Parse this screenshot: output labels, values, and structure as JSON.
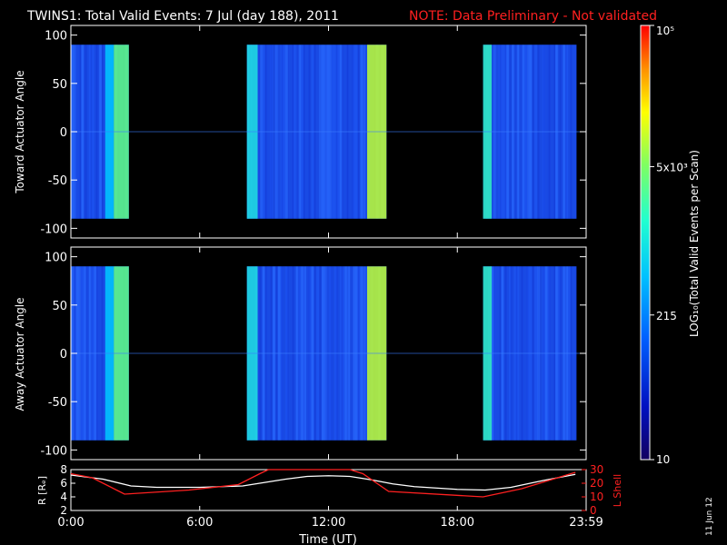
{
  "header": {
    "title": "TWINS1: Total Valid Events:  7 Jul (day 188), 2011",
    "note": "NOTE: Data Preliminary - Not validated"
  },
  "colorbar": {
    "label": "LOG₁₀(Total Valid Events per Scan)",
    "ticks": [
      "10",
      "215",
      "5x10³",
      "10⁵"
    ]
  },
  "side_date": "11 Jun 12",
  "colors": {
    "title": "#ffffff",
    "note": "#ff2020",
    "background": "#000000",
    "lshell": "#ff2020",
    "r": "#ffffff"
  },
  "chart_data": [
    {
      "type": "heatmap",
      "panel": "top",
      "ylabel": "Toward Actuator Angle",
      "ylim": [
        -110,
        110
      ],
      "y_ticks": [
        100,
        50,
        0,
        -50,
        -100
      ],
      "xlim": [
        0,
        24
      ],
      "angle_range": [
        -90,
        90
      ],
      "coverage_hours": [
        [
          0,
          2.7
        ],
        [
          8.2,
          14.7
        ],
        [
          19.2,
          23.55
        ]
      ],
      "bright_stripes_hours": [
        [
          1.6,
          2.0
        ],
        [
          2.0,
          2.7
        ],
        [
          8.2,
          8.7
        ],
        [
          13.8,
          14.7
        ],
        [
          19.2,
          19.6
        ]
      ],
      "scale": "log"
    },
    {
      "type": "heatmap",
      "panel": "middle",
      "ylabel": "Away Actuator Angle",
      "ylim": [
        -110,
        110
      ],
      "y_ticks": [
        100,
        50,
        0,
        -50,
        -100
      ],
      "xlim": [
        0,
        24
      ],
      "angle_range": [
        -90,
        90
      ],
      "coverage_hours": [
        [
          0,
          2.7
        ],
        [
          8.2,
          14.7
        ],
        [
          19.2,
          23.55
        ]
      ],
      "bright_stripes_hours": [
        [
          1.6,
          2.0
        ],
        [
          2.0,
          2.7
        ],
        [
          8.2,
          8.7
        ],
        [
          13.8,
          14.7
        ],
        [
          19.2,
          19.6
        ]
      ],
      "scale": "log"
    },
    {
      "type": "line",
      "panel": "bottom",
      "xlabel": "Time (UT)",
      "x_ticks": [
        "0:00",
        "6:00",
        "12:00",
        "18:00",
        "23:59"
      ],
      "xlim": [
        0,
        24
      ],
      "ylabel_left": "R [Rₑ]",
      "ylabel_right": "L Shell",
      "ylim_left": [
        2,
        8
      ],
      "y_ticks_left": [
        2,
        4,
        6,
        8
      ],
      "ylim_right": [
        0,
        30
      ],
      "y_ticks_right": [
        0,
        10,
        20,
        30
      ],
      "series": [
        {
          "name": "R [Rₑ]",
          "axis": "left",
          "x": [
            0,
            1.5,
            2.8,
            4,
            6,
            8,
            9,
            10,
            11,
            12,
            13,
            14,
            15,
            16,
            18,
            19.3,
            20.5,
            22,
            23.5
          ],
          "y": [
            7.2,
            6.6,
            5.6,
            5.4,
            5.4,
            5.6,
            6.1,
            6.6,
            7.0,
            7.1,
            7.0,
            6.5,
            5.9,
            5.5,
            5.1,
            5.0,
            5.4,
            6.4,
            7.3
          ]
        },
        {
          "name": "L Shell",
          "axis": "right",
          "x": [
            0,
            1,
            2.5,
            5.5,
            7.8,
            8.8,
            9.2,
            13,
            13.6,
            14.8,
            19.2,
            21,
            23.5
          ],
          "y": [
            27,
            24,
            12,
            15,
            19,
            27,
            30,
            30,
            27,
            14,
            10,
            16,
            28
          ]
        }
      ]
    }
  ]
}
